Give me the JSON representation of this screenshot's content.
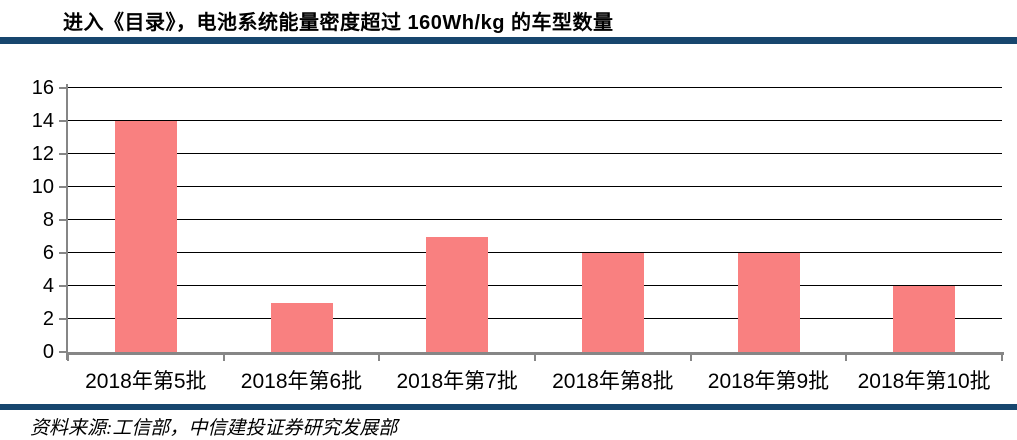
{
  "header": {
    "title": "进入《目录》，电池系统能量密度超过 160Wh/kg 的车型数量"
  },
  "footer": {
    "source": "资料来源:工信部，中信建投证券研究发展部"
  },
  "colors": {
    "bar": "#F98080",
    "divider": "#17466E",
    "gridline": "#000000",
    "axis": "#868686",
    "text": "#000000"
  },
  "chart_data": {
    "type": "bar",
    "categories": [
      "2018年第5批",
      "2018年第6批",
      "2018年第7批",
      "2018年第8批",
      "2018年第9批",
      "2018年第10批"
    ],
    "values": [
      14,
      3,
      7,
      6,
      6,
      4
    ],
    "title": "进入《目录》，电池系统能量密度超过 160Wh/kg 的车型数量",
    "xlabel": "",
    "ylabel": "",
    "ylim": [
      0,
      16
    ],
    "ytick_step": 2,
    "grid": true,
    "legend": false
  }
}
